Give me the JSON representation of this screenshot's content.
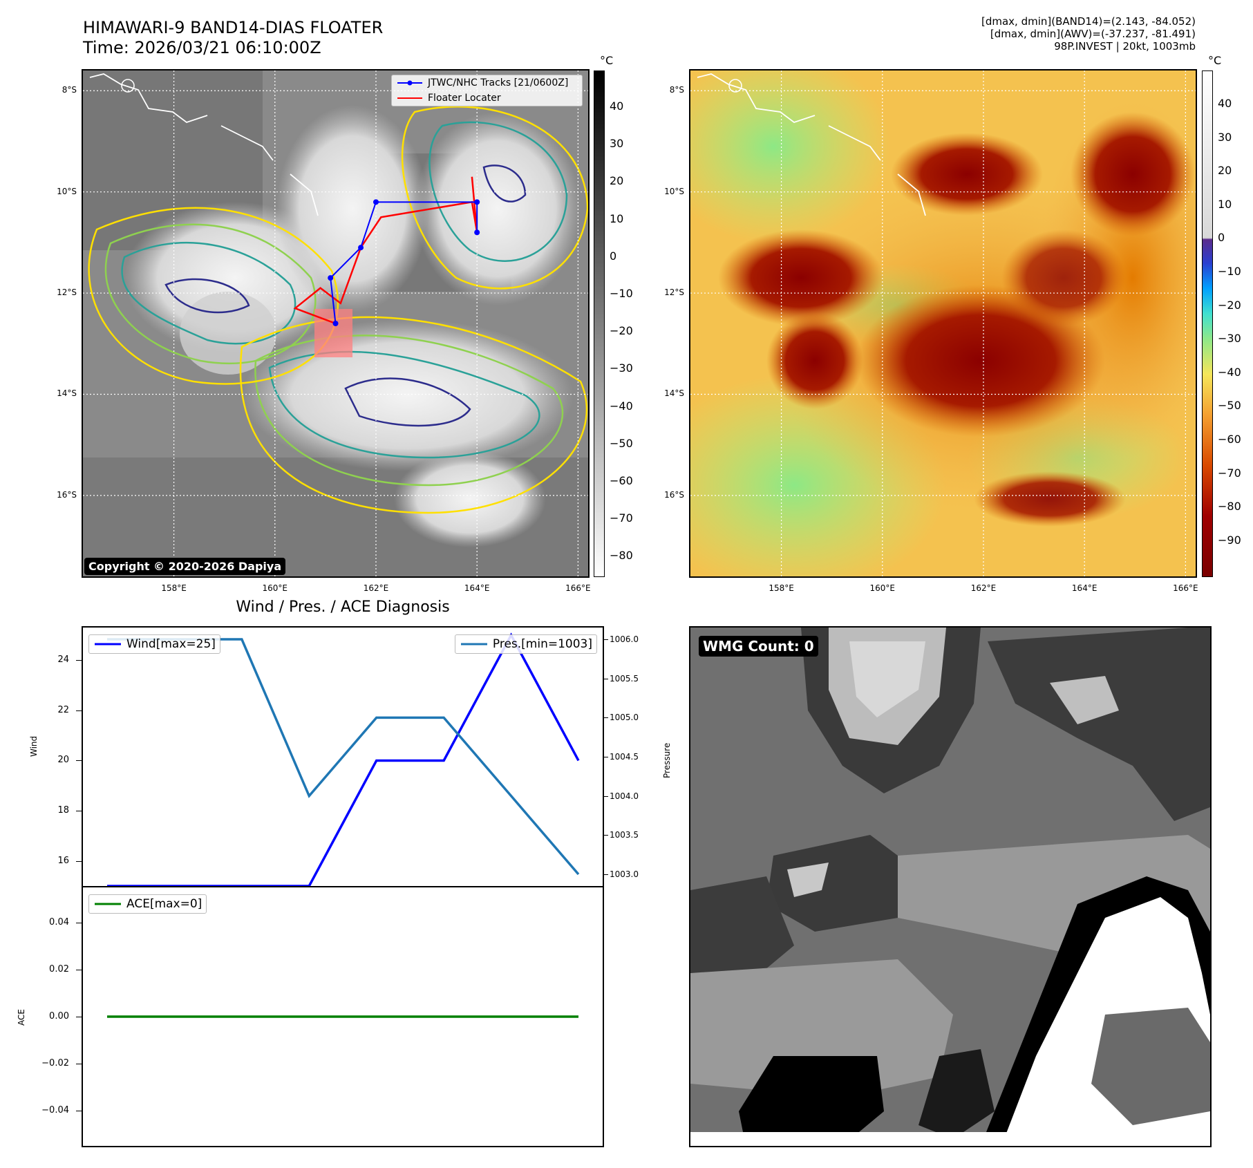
{
  "header": {
    "title_line1": "HIMAWARI-9 BAND14-DIAS FLOATER",
    "title_line2": "Time: 2026/03/21 06:10:00Z",
    "info_line1": "[dmax, dmin](BAND14)=(2.143, -84.052)",
    "info_line2": "[dmax, dmin](AWV)=(-37.237, -81.491)",
    "info_line3": "98P.INVEST | 20kt, 1003mb"
  },
  "map": {
    "lat_labels": [
      "8°S",
      "10°S",
      "12°S",
      "14°S",
      "16°S"
    ],
    "lon_labels": [
      "158°E",
      "160°E",
      "162°E",
      "164°E",
      "166°E"
    ],
    "lon_range": [
      156.2,
      166.2
    ],
    "lat_range": [
      -7.6,
      -17.6
    ],
    "legend_tracks": "JTWC/NHC Tracks [21/0600Z]",
    "legend_floater": "Floater Locater",
    "copyright": "Copyright © 2020-2026 Dapiya",
    "track_color": "#0000ff",
    "floater_color": "#ff0000",
    "track_points": [
      [
        164.0,
        -10.8
      ],
      [
        164.0,
        -10.2
      ],
      [
        162.0,
        -10.2
      ],
      [
        161.7,
        -11.1
      ],
      [
        161.1,
        -11.7
      ],
      [
        161.2,
        -12.6
      ]
    ],
    "floater_points": [
      [
        163.9,
        -9.7
      ],
      [
        164.0,
        -10.8
      ],
      [
        163.9,
        -10.2
      ],
      [
        162.1,
        -10.5
      ],
      [
        161.7,
        -11.1
      ],
      [
        161.3,
        -12.2
      ],
      [
        160.9,
        -11.9
      ],
      [
        160.4,
        -12.3
      ],
      [
        161.2,
        -12.6
      ]
    ]
  },
  "colorbar_left": {
    "unit": "°C",
    "ticks": [
      "40",
      "30",
      "20",
      "10",
      "0",
      "−10",
      "−20",
      "−30",
      "−40",
      "−50",
      "−60",
      "−70",
      "−80"
    ]
  },
  "colorbar_right": {
    "unit": "°C",
    "ticks": [
      "40",
      "30",
      "20",
      "10",
      "0",
      "−10",
      "−20",
      "−30",
      "−40",
      "−50",
      "−60",
      "−70",
      "−80",
      "−90"
    ]
  },
  "diagnosis": {
    "title": "Wind / Pres. / ACE Diagnosis"
  },
  "chart_data": [
    {
      "type": "line",
      "x": [
        0,
        1,
        2,
        3,
        4,
        5,
        6,
        7
      ],
      "series": [
        {
          "name": "Wind[max=25]",
          "axis": "left",
          "color": "#0000ff",
          "values": [
            15,
            15,
            15,
            15,
            20,
            20,
            25,
            20
          ]
        }
      ],
      "ylabel": "Wind",
      "ylim": [
        15,
        25.3
      ],
      "yticks": [
        16,
        18,
        20,
        22,
        24
      ]
    },
    {
      "type": "line",
      "x": [
        0,
        1,
        2,
        3,
        4,
        5,
        6,
        7
      ],
      "series": [
        {
          "name": "Pres.[min=1003]",
          "axis": "right",
          "color": "#1f77b4",
          "values": [
            1006,
            1006,
            1006,
            1004,
            1005,
            1005,
            1004,
            1003
          ]
        }
      ],
      "ylabel": "Pressure",
      "ylim": [
        1002.85,
        1006.15
      ],
      "yticks": [
        "1003.0",
        "1003.5",
        "1004.0",
        "1004.5",
        "1005.0",
        "1005.5",
        "1006.0"
      ]
    },
    {
      "type": "line",
      "x": [
        0,
        1,
        2,
        3,
        4,
        5,
        6,
        7
      ],
      "series": [
        {
          "name": "ACE[max=0]",
          "color": "#008000",
          "values": [
            0,
            0,
            0,
            0,
            0,
            0,
            0,
            0
          ]
        }
      ],
      "ylabel": "ACE",
      "ylim": [
        -0.055,
        0.055
      ],
      "yticks": [
        "0.04",
        "0.02",
        "0.00",
        "−0.02",
        "−0.04"
      ]
    }
  ],
  "wmg": {
    "count_label": "WMG Count: 0"
  }
}
